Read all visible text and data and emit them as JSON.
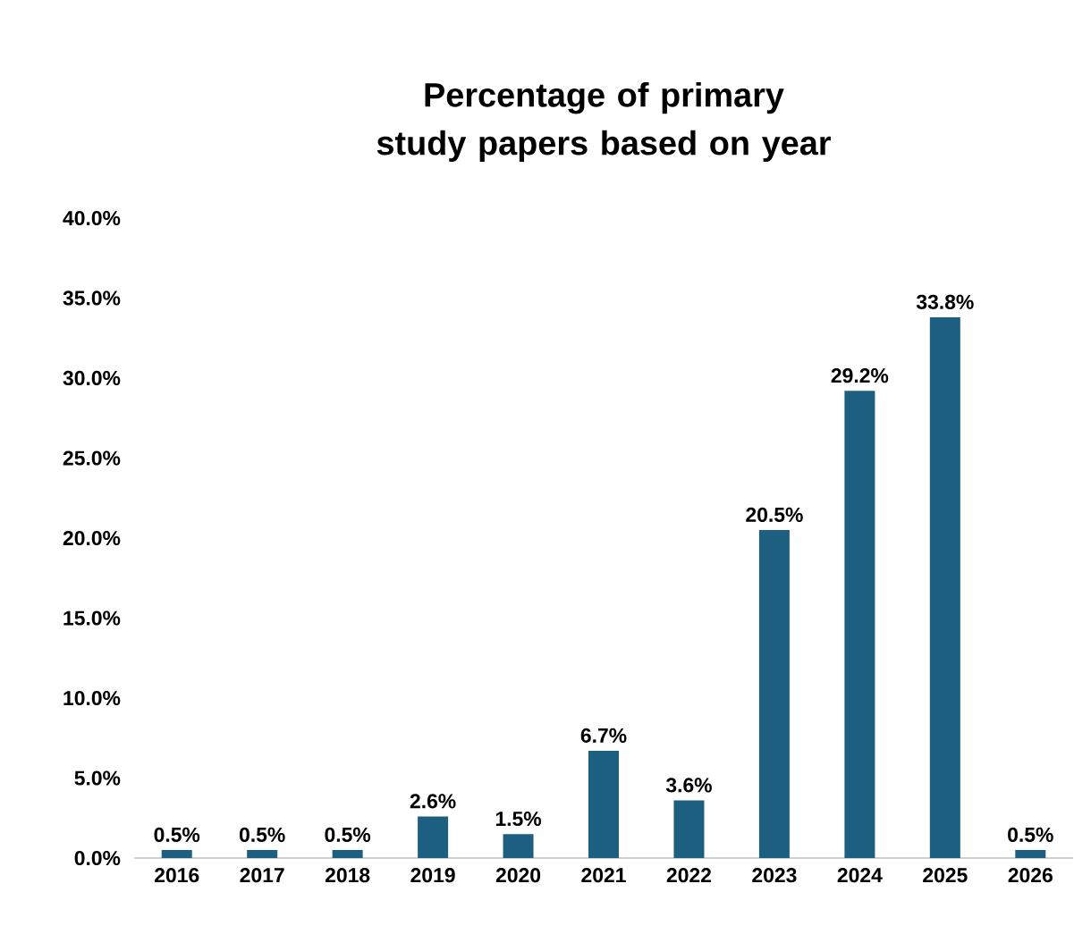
{
  "chart_data": {
    "type": "bar",
    "title": "Percentage of primary study papers based on year",
    "categories": [
      "2016",
      "2017",
      "2018",
      "2019",
      "2020",
      "2021",
      "2022",
      "2023",
      "2024",
      "2025",
      "2026"
    ],
    "values": [
      0.5,
      0.5,
      0.5,
      2.6,
      1.5,
      6.7,
      3.6,
      20.5,
      29.2,
      33.8,
      0.5
    ],
    "value_labels": [
      "0.5%",
      "0.5%",
      "0.5%",
      "2.6%",
      "1.5%",
      "6.7%",
      "3.6%",
      "20.5%",
      "29.2%",
      "33.8%",
      "0.5%"
    ],
    "color": "#1c5f80",
    "ylim": [
      0,
      40
    ],
    "yticks": [
      {
        "value": 0,
        "label": "0.0%"
      },
      {
        "value": 5,
        "label": "5.0%"
      },
      {
        "value": 10,
        "label": "10.0%"
      },
      {
        "value": 15,
        "label": "15.0%"
      },
      {
        "value": 20,
        "label": "20.0%"
      },
      {
        "value": 25,
        "label": "25.0%"
      },
      {
        "value": 30,
        "label": "30.0%"
      },
      {
        "value": 35,
        "label": "35.0%"
      },
      {
        "value": 40,
        "label": "40.0%"
      }
    ]
  }
}
